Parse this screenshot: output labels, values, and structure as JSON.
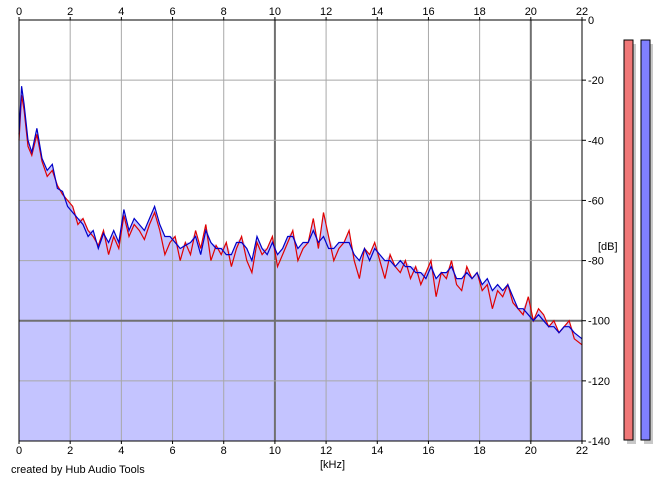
{
  "chart_data": {
    "type": "area",
    "xlabel": "[kHz]",
    "ylabel": "[dB]",
    "xlim": [
      0,
      22
    ],
    "ylim": [
      -140,
      0
    ],
    "x_ticks": [
      0,
      2,
      4,
      6,
      8,
      10,
      12,
      14,
      16,
      18,
      20,
      22
    ],
    "y_ticks": [
      0,
      -20,
      -40,
      -60,
      -80,
      -100,
      -120,
      -140
    ],
    "y_tick_labels": [
      "0",
      "-20",
      "-40",
      "-60",
      "-80",
      "-100",
      "-120",
      "-140"
    ],
    "grid": true,
    "x": [
      0,
      0.1,
      0.2,
      0.35,
      0.5,
      0.7,
      0.9,
      1.1,
      1.3,
      1.5,
      1.7,
      1.9,
      2.1,
      2.3,
      2.5,
      2.7,
      2.9,
      3.1,
      3.3,
      3.5,
      3.7,
      3.9,
      4.1,
      4.3,
      4.5,
      4.7,
      4.9,
      5.1,
      5.3,
      5.5,
      5.7,
      5.9,
      6.1,
      6.3,
      6.5,
      6.7,
      6.9,
      7.1,
      7.3,
      7.5,
      7.7,
      7.9,
      8.1,
      8.3,
      8.5,
      8.7,
      8.9,
      9.1,
      9.3,
      9.5,
      9.7,
      9.9,
      10.1,
      10.3,
      10.5,
      10.7,
      10.9,
      11.1,
      11.3,
      11.5,
      11.7,
      11.9,
      12.1,
      12.3,
      12.5,
      12.7,
      12.9,
      13.1,
      13.3,
      13.5,
      13.7,
      13.9,
      14.1,
      14.3,
      14.5,
      14.7,
      14.9,
      15.1,
      15.3,
      15.5,
      15.7,
      15.9,
      16.1,
      16.3,
      16.5,
      16.7,
      16.9,
      17.1,
      17.3,
      17.5,
      17.7,
      17.9,
      18.1,
      18.3,
      18.5,
      18.7,
      18.9,
      19.1,
      19.3,
      19.5,
      19.7,
      19.9,
      20.1,
      20.3,
      20.5,
      20.7,
      20.9,
      21.1,
      21.3,
      21.5,
      21.7,
      22
    ],
    "series": [
      {
        "color": "#e00000",
        "values": [
          -40,
          -25,
          -30,
          -42,
          -45,
          -38,
          -47,
          -52,
          -50,
          -55,
          -58,
          -60,
          -62,
          -68,
          -66,
          -70,
          -72,
          -75,
          -70,
          -78,
          -72,
          -76,
          -65,
          -72,
          -68,
          -70,
          -73,
          -68,
          -64,
          -70,
          -78,
          -74,
          -72,
          -80,
          -74,
          -78,
          -70,
          -76,
          -68,
          -80,
          -75,
          -78,
          -74,
          -82,
          -76,
          -72,
          -80,
          -84,
          -74,
          -78,
          -76,
          -72,
          -82,
          -78,
          -74,
          -70,
          -80,
          -76,
          -74,
          -66,
          -76,
          -64,
          -72,
          -80,
          -76,
          -74,
          -70,
          -80,
          -86,
          -76,
          -78,
          -74,
          -80,
          -86,
          -78,
          -82,
          -84,
          -80,
          -86,
          -82,
          -88,
          -84,
          -80,
          -92,
          -84,
          -86,
          -80,
          -88,
          -90,
          -82,
          -86,
          -84,
          -90,
          -88,
          -96,
          -90,
          -92,
          -88,
          -94,
          -96,
          -98,
          -92,
          -100,
          -96,
          -98,
          -102,
          -100,
          -104,
          -102,
          -100,
          -106,
          -108
        ]
      },
      {
        "color": "#0000c8",
        "values": [
          -38,
          -22,
          -28,
          -40,
          -44,
          -36,
          -46,
          -50,
          -48,
          -56,
          -57,
          -62,
          -64,
          -66,
          -68,
          -72,
          -70,
          -76,
          -71,
          -74,
          -70,
          -74,
          -63,
          -70,
          -66,
          -68,
          -70,
          -66,
          -62,
          -68,
          -72,
          -72,
          -74,
          -76,
          -75,
          -74,
          -72,
          -78,
          -70,
          -74,
          -76,
          -76,
          -78,
          -78,
          -74,
          -74,
          -76,
          -80,
          -72,
          -76,
          -78,
          -74,
          -78,
          -76,
          -72,
          -72,
          -76,
          -74,
          -74,
          -70,
          -74,
          -72,
          -76,
          -76,
          -74,
          -74,
          -74,
          -78,
          -80,
          -76,
          -80,
          -76,
          -78,
          -80,
          -80,
          -82,
          -80,
          -82,
          -82,
          -84,
          -84,
          -86,
          -82,
          -86,
          -84,
          -84,
          -82,
          -86,
          -86,
          -84,
          -86,
          -84,
          -88,
          -86,
          -90,
          -88,
          -90,
          -88,
          -92,
          -96,
          -96,
          -98,
          -100,
          -98,
          -100,
          -102,
          -102,
          -104,
          -102,
          -102,
          -104,
          -106
        ]
      }
    ],
    "level_meters": [
      {
        "color": "#f07878",
        "fraction": 1.0
      },
      {
        "color": "#8080ff",
        "fraction": 1.0
      }
    ]
  },
  "footer": {
    "credit": "created by Hub Audio Tools"
  },
  "colors": {
    "fill": "#c4c4ff",
    "grid": "#a8a8a8",
    "grid_major": "#707070"
  }
}
